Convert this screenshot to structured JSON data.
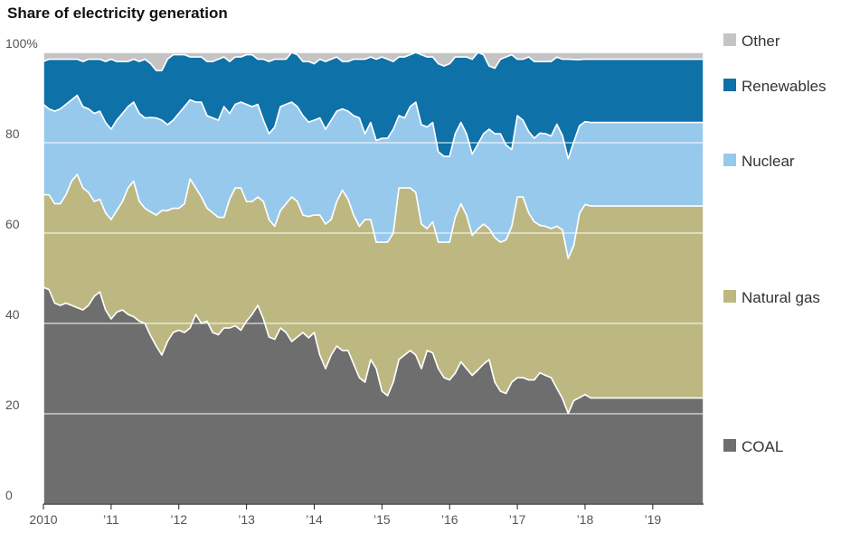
{
  "chart_data": {
    "type": "area",
    "stacked": true,
    "normalized": true,
    "title": "Share of electricity generation",
    "xlabel": "",
    "ylabel": "",
    "ylim": [
      0,
      100
    ],
    "y_ticks": [
      0,
      20,
      40,
      60,
      80,
      100
    ],
    "y_tick_labels": [
      "0",
      "20",
      "40",
      "60",
      "80",
      "100%"
    ],
    "x_range": [
      2010,
      2019.75
    ],
    "x_ticks": [
      2010,
      2011,
      2012,
      2013,
      2014,
      2015,
      2016,
      2017,
      2018,
      2019
    ],
    "x_tick_labels": [
      "2010",
      "’11",
      "’12",
      "’13",
      "’14",
      "’15",
      "’16",
      "’17",
      "’18",
      "’19"
    ],
    "grid": "horizontal",
    "legend_position": "right",
    "colors": {
      "COAL": "#6e6e6e",
      "Natural gas": "#bdb882",
      "Nuclear": "#97c9ec",
      "Renewables": "#0e71a8",
      "Other": "#c4c4c4"
    },
    "x": [
      2010.0,
      2010.083,
      2010.167,
      2010.25,
      2010.333,
      2010.417,
      2010.5,
      2010.583,
      2010.667,
      2010.75,
      2010.833,
      2010.917,
      2011.0,
      2011.083,
      2011.167,
      2011.25,
      2011.333,
      2011.417,
      2011.5,
      2011.583,
      2011.667,
      2011.75,
      2011.833,
      2011.917,
      2012.0,
      2012.083,
      2012.167,
      2012.25,
      2012.333,
      2012.417,
      2012.5,
      2012.583,
      2012.667,
      2012.75,
      2012.833,
      2012.917,
      2013.0,
      2013.083,
      2013.167,
      2013.25,
      2013.333,
      2013.417,
      2013.5,
      2013.583,
      2013.667,
      2013.75,
      2013.833,
      2013.917,
      2014.0,
      2014.083,
      2014.167,
      2014.25,
      2014.333,
      2014.417,
      2014.5,
      2014.583,
      2014.667,
      2014.75,
      2014.833,
      2014.917,
      2015.0,
      2015.083,
      2015.167,
      2015.25,
      2015.333,
      2015.417,
      2015.5,
      2015.583,
      2015.667,
      2015.75,
      2015.833,
      2015.917,
      2016.0,
      2016.083,
      2016.167,
      2016.25,
      2016.333,
      2016.417,
      2016.5,
      2016.583,
      2016.667,
      2016.75,
      2016.833,
      2016.917,
      2017.0,
      2017.083,
      2017.167,
      2017.25,
      2017.333,
      2017.417,
      2017.5,
      2017.583,
      2017.667,
      2017.75,
      2017.833,
      2017.917,
      2018.0,
      2018.083,
      2018.167,
      2018.25,
      2018.333,
      2018.417,
      2018.5,
      2018.583,
      2018.667,
      2018.75,
      2018.833,
      2018.917,
      2019.0,
      2019.083,
      2019.167,
      2019.25,
      2019.333,
      2019.417,
      2019.5,
      2019.583,
      2019.667,
      2019.75
    ],
    "series": [
      {
        "name": "COAL",
        "values": [
          48,
          47.5,
          44.5,
          44,
          44.5,
          44,
          43.5,
          43,
          44,
          46,
          47,
          43,
          41,
          42.5,
          43,
          42,
          41.5,
          40.5,
          40,
          37.5,
          35,
          33,
          36,
          38,
          38.5,
          38,
          39,
          42,
          40,
          40.5,
          38,
          37.5,
          39,
          39,
          39.5,
          38.5,
          40.5,
          42,
          44,
          41,
          37,
          36.5,
          39,
          38,
          36,
          37,
          38,
          37,
          38,
          33,
          30,
          33,
          35,
          34,
          34,
          31,
          28,
          27,
          32,
          30,
          25,
          24,
          27,
          32,
          33,
          34,
          33,
          30,
          34,
          33.5,
          30,
          28,
          27.5,
          29,
          31.5,
          30,
          28.5,
          30,
          31,
          32,
          27,
          25,
          24.5,
          27,
          28,
          28,
          27.5,
          27.5,
          28.5,
          28.5,
          28,
          25,
          23.5,
          20.5,
          22,
          22.5,
          24.5,
          23.5,
          23.5,
          23.5,
          23.5,
          23.5,
          23.5,
          23.5,
          23.5,
          23.5,
          23.5,
          23.5,
          23.5,
          23.5,
          23.5,
          23.5,
          23.5,
          23.5,
          23.5,
          23.5,
          23.5,
          23.5
        ]
      },
      {
        "name": "Natural gas",
        "values": [
          20.5,
          21,
          22,
          22.5,
          24,
          27.5,
          29.5,
          27,
          25,
          21,
          20.5,
          21.5,
          22,
          22.5,
          24,
          28,
          30,
          26.5,
          25.5,
          27.5,
          29,
          32,
          29,
          27.5,
          27,
          28.5,
          33,
          28,
          28,
          25,
          26.5,
          26,
          24.5,
          28.5,
          30.5,
          31.5,
          26.5,
          25,
          24,
          26,
          26,
          25,
          26,
          28.5,
          32,
          30,
          26,
          27,
          26,
          31,
          32,
          30,
          32,
          35.5,
          33.5,
          33,
          33.5,
          36,
          31,
          28,
          33,
          34,
          33,
          38,
          37,
          36,
          36,
          32,
          27,
          29,
          28,
          30,
          30.5,
          34.5,
          35,
          34,
          31,
          31.5,
          31,
          29,
          32,
          33,
          34,
          34.5,
          40,
          40,
          37,
          35,
          32,
          33,
          33,
          35,
          37.5,
          35,
          33,
          39,
          42.5,
          42.5,
          42.5,
          42.5,
          42.5,
          42.5,
          42.5,
          42.5,
          42.5,
          42.5,
          42.5,
          42.5,
          42.5,
          42.5,
          42.5,
          42.5,
          42.5,
          42.5,
          42.5,
          42.5,
          42.5,
          42.5
        ]
      },
      {
        "name": "Nuclear",
        "values": [
          20,
          19,
          20.5,
          21,
          20,
          18,
          17.5,
          18,
          18.5,
          19.5,
          19.5,
          20,
          20,
          20,
          19.5,
          18,
          17.5,
          19.5,
          20,
          21,
          21.5,
          20,
          19,
          19.5,
          21,
          21.5,
          17.5,
          19,
          21,
          20.5,
          21,
          21.5,
          24.5,
          19,
          18.5,
          19,
          21.5,
          21,
          20.5,
          18,
          19,
          22,
          23,
          22,
          21,
          21,
          22,
          21,
          21,
          21.5,
          21,
          22,
          20,
          18,
          19.5,
          22,
          24,
          19,
          21.5,
          22.5,
          23,
          23,
          23,
          16,
          15.5,
          18,
          20,
          22,
          22.5,
          22,
          20,
          19,
          19,
          18.5,
          18,
          18,
          18,
          19,
          20,
          22,
          23,
          24,
          21,
          17,
          18,
          17,
          18,
          18.5,
          20,
          20.5,
          20.5,
          22,
          21,
          22.5,
          22,
          18.5,
          18.5,
          18.5,
          18.5,
          18.5,
          18.5,
          18.5,
          18.5,
          18.5,
          18.5,
          18.5,
          18.5,
          18.5,
          18.5,
          18.5,
          18.5,
          18.5,
          18.5,
          18.5,
          18.5,
          18.5,
          18.5,
          18.5
        ]
      },
      {
        "name": "Renewables",
        "values": [
          9.5,
          11,
          11.5,
          11,
          10,
          9,
          8,
          10,
          11,
          12,
          11.5,
          13.5,
          15.5,
          13,
          11.5,
          10,
          9.5,
          11.5,
          13,
          12,
          10.5,
          11,
          14.5,
          14.5,
          13,
          11.5,
          9.5,
          10,
          10,
          12,
          12.5,
          13.5,
          11,
          11.5,
          10.5,
          10,
          11,
          11.5,
          10,
          13.5,
          16,
          15,
          10.5,
          10,
          11,
          11.5,
          12,
          13.5,
          12.5,
          13,
          15,
          13.5,
          12,
          10.5,
          11,
          12.5,
          13,
          16.5,
          14.5,
          18,
          18,
          17.5,
          15,
          13,
          13.5,
          11.5,
          11,
          15.5,
          15.5,
          14.5,
          19.5,
          20,
          20.5,
          17,
          14.5,
          17,
          21,
          20.5,
          17.5,
          14,
          14.5,
          16.5,
          19.5,
          21,
          12.5,
          13.5,
          16.5,
          17,
          15.5,
          16,
          16.5,
          14.5,
          17,
          22.5,
          17.5,
          14,
          14,
          14,
          14,
          14,
          14,
          14,
          14,
          14,
          14,
          14,
          14,
          14,
          14,
          14,
          14,
          14,
          14,
          14,
          14,
          14,
          14,
          14
        ]
      },
      {
        "name": "Other",
        "values": [
          2,
          1.5,
          1.5,
          1.5,
          1.5,
          1.5,
          1.5,
          2,
          1.5,
          1.5,
          1.5,
          2,
          1.5,
          2,
          2,
          2,
          1.5,
          2,
          1.5,
          2.5,
          4,
          4,
          1.5,
          0.5,
          0.5,
          0.5,
          1,
          1,
          1,
          2,
          2,
          1.5,
          1,
          2,
          1,
          1,
          0.5,
          0.5,
          1.5,
          1.5,
          2,
          1.5,
          1.5,
          1.5,
          0,
          0.5,
          2,
          2,
          2.5,
          1.5,
          2,
          1.5,
          1,
          2,
          2,
          1.5,
          1.5,
          1.5,
          1,
          1.5,
          1,
          1.5,
          2,
          1,
          1,
          0.5,
          0,
          0.5,
          1,
          1,
          2.5,
          3,
          2.5,
          1,
          1,
          1,
          1.5,
          0,
          0.5,
          3,
          3.5,
          1.5,
          1,
          0.5,
          1.5,
          1.5,
          1,
          2,
          2,
          2,
          2,
          1,
          1.5,
          1.5,
          1.5,
          1.5,
          1.5,
          1.5,
          1.5,
          1.5,
          1.5,
          1.5,
          1.5,
          1.5,
          1.5,
          1.5,
          1.5,
          1.5,
          1.5,
          1.5,
          1.5,
          1.5,
          1.5,
          1.5,
          1.5,
          1.5,
          1.5,
          1.5
        ]
      }
    ]
  }
}
